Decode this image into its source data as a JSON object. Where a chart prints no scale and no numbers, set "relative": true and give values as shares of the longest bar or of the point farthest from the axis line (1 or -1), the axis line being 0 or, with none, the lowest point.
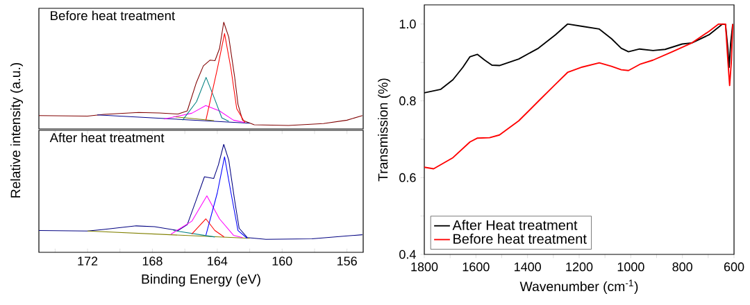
{
  "chart_data": [
    {
      "type": "line",
      "title": "Before heat treatment",
      "ylabel": "Relative intensity (a.u.)",
      "relative": true,
      "xlim": [
        175,
        155
      ],
      "tick_labels": false,
      "marker": "none",
      "grid": false,
      "legend": false,
      "series": [
        {
          "color": "#800000",
          "x": [
            175,
            172,
            171,
            168.85,
            167.56,
            166.42,
            165.85,
            165.3,
            164.86,
            164.44,
            164.14,
            163.86,
            163.6,
            163.29,
            162.93,
            162.72,
            162.44,
            161.72,
            159.6,
            157.45,
            156,
            155.05
          ],
          "values": [
            0.125,
            0.12,
            0.136,
            0.154,
            0.15,
            0.14,
            0.169,
            0.43,
            0.59,
            0.645,
            0.64,
            0.753,
            1.0,
            0.86,
            0.49,
            0.23,
            0.082,
            0.039,
            0.033,
            0.05,
            0.082,
            0.125
          ]
        },
        {
          "color": "#00008b",
          "x": [
            171.4,
            162.0
          ],
          "values": [
            0.132,
            0.054
          ]
        },
        {
          "color": "#808000",
          "x": [
            166.7,
            164.2
          ],
          "values": [
            0.115,
            0.078
          ]
        },
        {
          "color": "#ff00ff",
          "x": [
            167.28,
            165.57,
            164.71,
            163.86,
            163.0,
            162.3
          ],
          "values": [
            0.093,
            0.147,
            0.219,
            0.169,
            0.082,
            0.06
          ]
        },
        {
          "color": "#008080",
          "x": [
            166.14,
            165.28,
            164.69,
            164.15,
            163.72,
            163.29
          ],
          "values": [
            0.082,
            0.255,
            0.483,
            0.277,
            0.104,
            0.071
          ]
        },
        {
          "color": "#ff0000",
          "x": [
            164.7,
            164.0,
            163.55,
            163.15,
            162.8,
            162.3
          ],
          "values": [
            0.082,
            0.56,
            0.894,
            0.56,
            0.19,
            0.06
          ]
        }
      ]
    },
    {
      "type": "line",
      "title": "After heat treatment",
      "xlabel": "Binding Energy (eV)",
      "relative": true,
      "xlim": [
        175,
        155
      ],
      "tick_labels": "x",
      "marker": "none",
      "grid": false,
      "legend": false,
      "xticks": [
        {
          "value": 174,
          "label": null
        },
        172,
        {
          "value": 170,
          "label": null
        },
        168,
        {
          "value": 166,
          "label": null
        },
        164,
        {
          "value": 162,
          "label": null
        },
        160,
        {
          "value": 158,
          "label": null
        },
        156
      ],
      "series": [
        {
          "color": "#000080",
          "x": [
            175,
            172,
            171,
            169.0,
            167.87,
            166.42,
            165.85,
            165.3,
            164.79,
            164.22,
            163.93,
            163.6,
            163.29,
            162.93,
            162.65,
            162.15,
            161.0,
            158.16,
            155.05
          ],
          "values": [
            0.202,
            0.197,
            0.212,
            0.245,
            0.238,
            0.202,
            0.256,
            0.484,
            0.7,
            0.684,
            0.81,
            1.0,
            0.853,
            0.484,
            0.223,
            0.137,
            0.121,
            0.125,
            0.163
          ]
        },
        {
          "color": "#808000",
          "x": [
            172,
            162.0
          ],
          "values": [
            0.197,
            0.13
          ]
        },
        {
          "color": "#008080",
          "x": [
            166.7,
            164.15
          ],
          "values": [
            0.202,
            0.142
          ]
        },
        {
          "color": "#ff00ff",
          "x": [
            166.85,
            165.57,
            164.64,
            163.86,
            163.0,
            162.44
          ],
          "values": [
            0.169,
            0.288,
            0.523,
            0.31,
            0.158,
            0.137
          ]
        },
        {
          "color": "#ff0000",
          "x": [
            165.57,
            164.7,
            164.15,
            163.58
          ],
          "values": [
            0.169,
            0.31,
            0.202,
            0.143
          ]
        },
        {
          "color": "#0000ff",
          "x": [
            164.7,
            164.0,
            163.55,
            163.15,
            162.72,
            162.15
          ],
          "values": [
            0.158,
            0.549,
            0.885,
            0.549,
            0.202,
            0.13
          ]
        }
      ]
    },
    {
      "type": "line",
      "xlabel": "Wavenumber (cm$^{-1}$)",
      "ylabel": "Transmission (%)",
      "xlim": [
        1800,
        600
      ],
      "ylim": [
        0.4,
        1.05
      ],
      "marker": "none",
      "grid": false,
      "legend": "bottom left",
      "xticks": [
        1800,
        {
          "value": 1700,
          "label": null
        },
        1600,
        {
          "value": 1500,
          "label": null
        },
        1400,
        {
          "value": 1300,
          "label": null
        },
        1200,
        {
          "value": 1100,
          "label": null
        },
        1000,
        {
          "value": 900,
          "label": null
        },
        800,
        {
          "value": 700,
          "label": null
        },
        600
      ],
      "yticks": [
        0.4,
        {
          "value": 0.5,
          "label": null
        },
        0.6,
        {
          "value": 0.7,
          "label": null
        },
        0.8,
        {
          "value": 0.9,
          "label": null
        },
        {
          "value": 1.0,
          "label": "1.0"
        }
      ],
      "series": [
        {
          "name": "After Heat treatment",
          "color": "#000000",
          "x": [
            1800,
            1736,
            1689,
            1651,
            1623,
            1594,
            1566,
            1538,
            1509,
            1434,
            1358,
            1292,
            1245,
            1188,
            1122,
            1075,
            1037,
            1009,
            966,
            914,
            867,
            801,
            763,
            697,
            645,
            633,
            624,
            619,
            613,
            605
          ],
          "values": [
            0.821,
            0.83,
            0.855,
            0.887,
            0.915,
            0.921,
            0.906,
            0.893,
            0.892,
            0.909,
            0.937,
            0.972,
            1.0,
            0.994,
            0.987,
            0.962,
            0.937,
            0.928,
            0.935,
            0.931,
            0.934,
            0.948,
            0.951,
            0.972,
            1.0,
            0.999,
            0.937,
            0.887,
            0.95,
            1.0
          ]
        },
        {
          "name": "Before heat treatment",
          "color": "#ff0000",
          "x": [
            1800,
            1764,
            1689,
            1623,
            1594,
            1547,
            1509,
            1434,
            1358,
            1292,
            1245,
            1188,
            1122,
            1075,
            1037,
            1009,
            962,
            914,
            839,
            763,
            697,
            660,
            633,
            624,
            617,
            610,
            605
          ],
          "values": [
            0.627,
            0.623,
            0.652,
            0.693,
            0.703,
            0.704,
            0.711,
            0.748,
            0.799,
            0.843,
            0.874,
            0.888,
            0.899,
            0.89,
            0.881,
            0.879,
            0.896,
            0.906,
            0.928,
            0.951,
            0.981,
            1.0,
            1.0,
            0.906,
            0.84,
            0.906,
            1.0
          ]
        }
      ]
    }
  ]
}
